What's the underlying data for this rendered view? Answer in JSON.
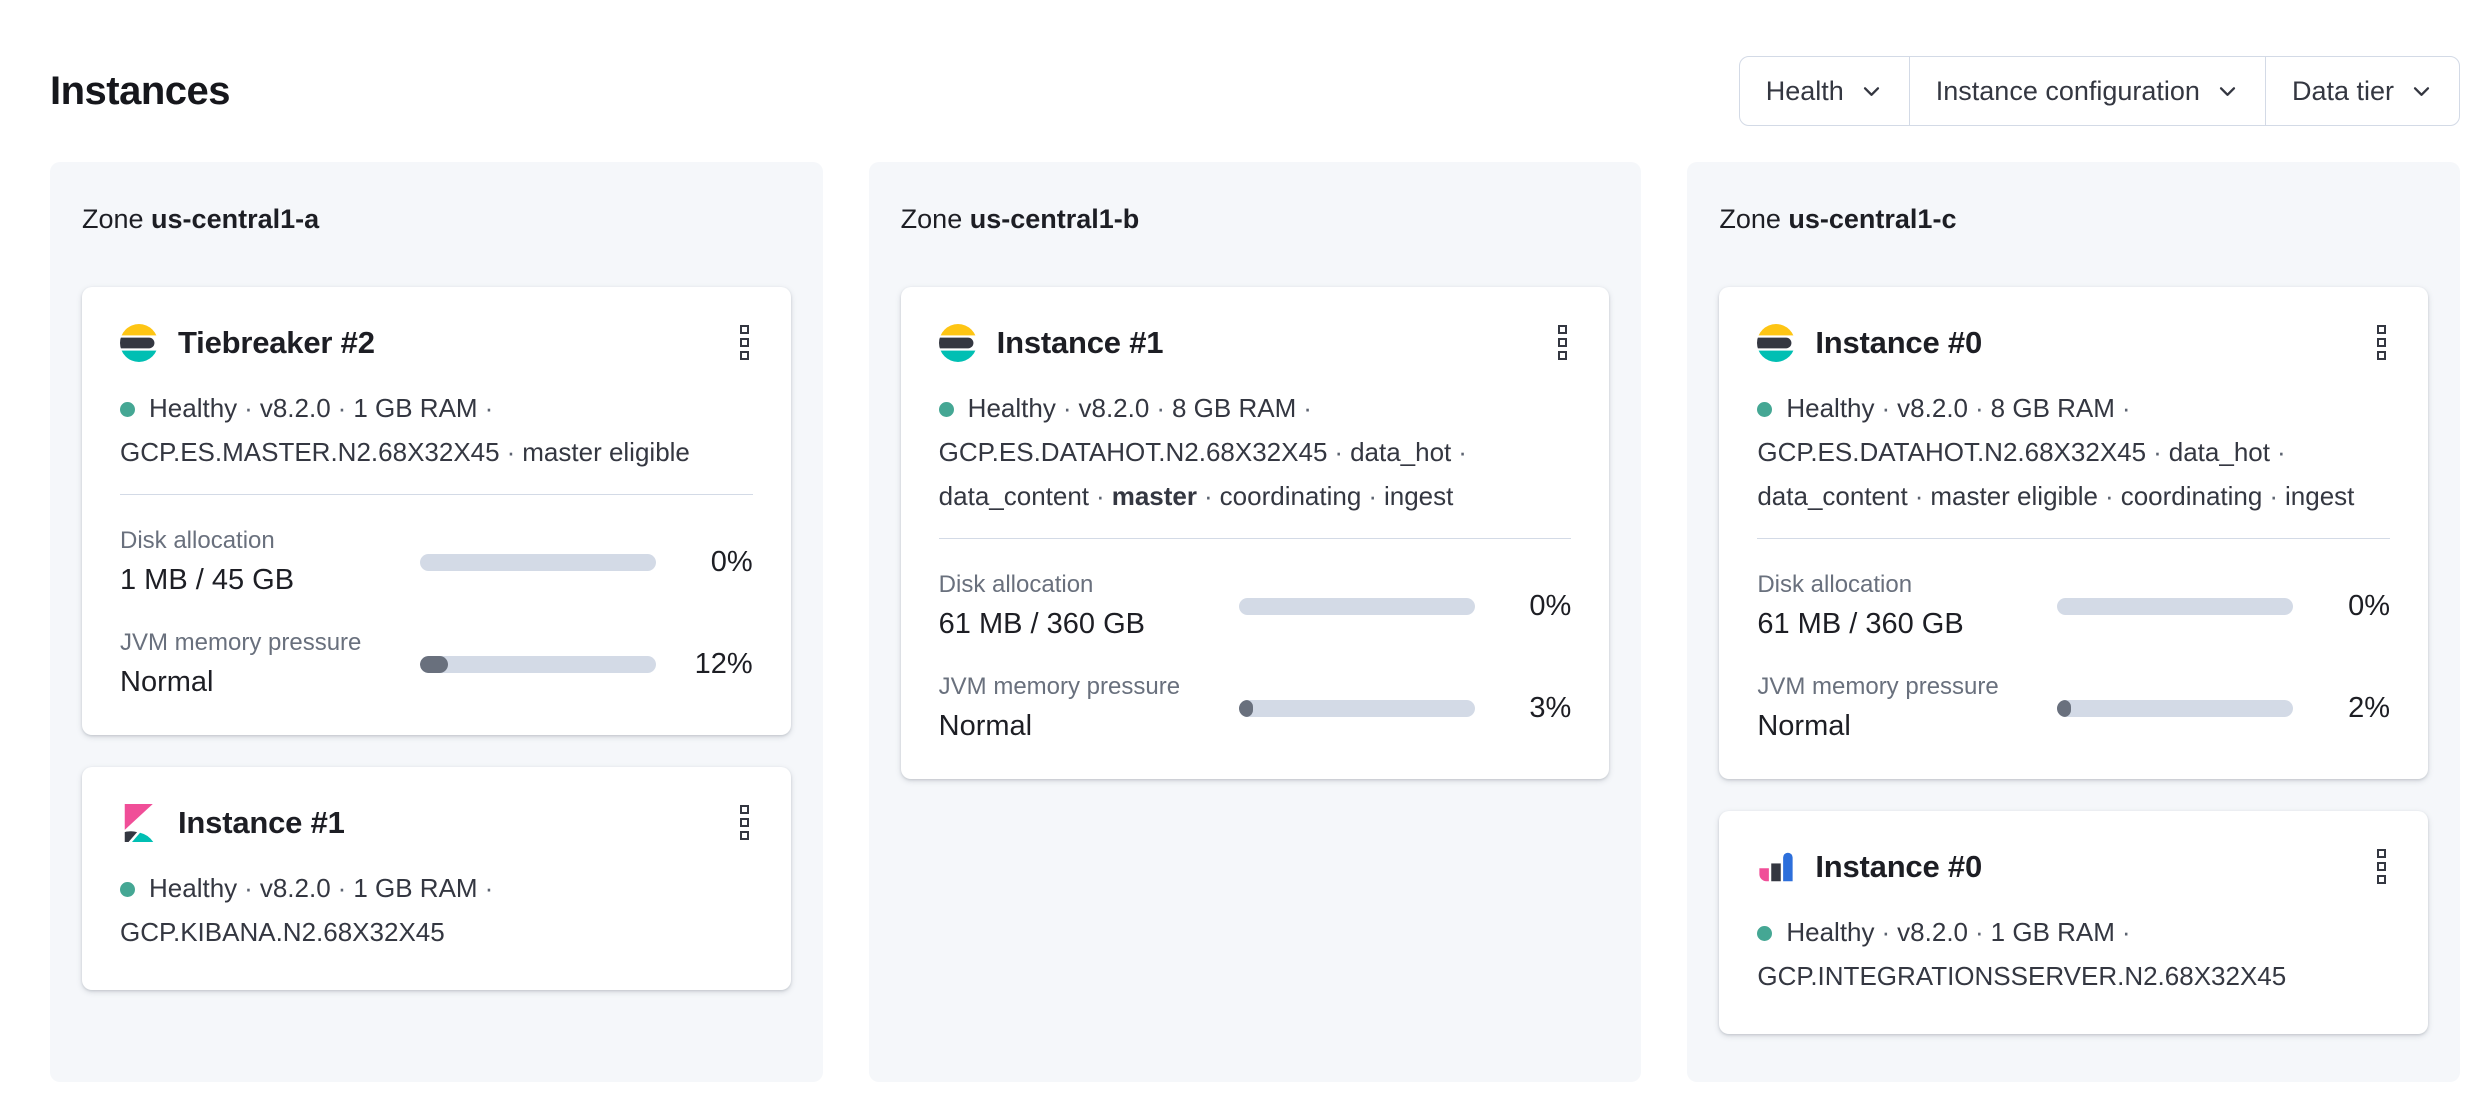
{
  "page": {
    "title": "Instances"
  },
  "filters": [
    {
      "label": "Health"
    },
    {
      "label": "Instance configuration"
    },
    {
      "label": "Data tier"
    }
  ],
  "colors": {
    "brand_yellow": "#FEC514",
    "brand_dark": "#343741",
    "brand_teal": "#00BFB3",
    "brand_pink": "#F04E98",
    "brand_blue": "#2D6FDB",
    "health_dot": "#45A794",
    "bar_track": "#D3DAE6",
    "bar_fill": "#69707D",
    "panel_bg": "#F5F7FA"
  },
  "zones": [
    {
      "label_prefix": "Zone",
      "name": "us-central1-a",
      "cards": [
        {
          "logo": "elasticsearch",
          "title": "Tiebreaker #2",
          "status_lines": [
            {
              "items": [
                {
                  "text": "Healthy",
                  "health_dot": true
                },
                {
                  "text": "v8.2.0"
                },
                {
                  "text": "1 GB RAM"
                }
              ],
              "trailing_separator": true
            },
            {
              "items": [
                {
                  "text": "GCP.ES.MASTER.N2.68X32X45"
                },
                {
                  "text": "master eligible"
                }
              ],
              "trailing_separator": false
            }
          ],
          "metrics": [
            {
              "label": "Disk allocation",
              "value": "1 MB / 45 GB",
              "percent": 0,
              "percent_label": "0%"
            },
            {
              "label": "JVM memory pressure",
              "value": "Normal",
              "percent": 12,
              "percent_label": "12%"
            }
          ]
        },
        {
          "logo": "kibana",
          "title": "Instance #1",
          "status_lines": [
            {
              "items": [
                {
                  "text": "Healthy",
                  "health_dot": true
                },
                {
                  "text": "v8.2.0"
                },
                {
                  "text": "1 GB RAM"
                }
              ],
              "trailing_separator": true
            },
            {
              "items": [
                {
                  "text": "GCP.KIBANA.N2.68X32X45"
                }
              ],
              "trailing_separator": false
            }
          ],
          "metrics": []
        }
      ]
    },
    {
      "label_prefix": "Zone",
      "name": "us-central1-b",
      "cards": [
        {
          "logo": "elasticsearch",
          "title": "Instance #1",
          "status_lines": [
            {
              "items": [
                {
                  "text": "Healthy",
                  "health_dot": true
                },
                {
                  "text": "v8.2.0"
                },
                {
                  "text": "8 GB RAM"
                }
              ],
              "trailing_separator": true
            },
            {
              "items": [
                {
                  "text": "GCP.ES.DATAHOT.N2.68X32X45"
                },
                {
                  "text": "data_hot"
                }
              ],
              "trailing_separator": true
            },
            {
              "items": [
                {
                  "text": "data_content"
                },
                {
                  "text": "master",
                  "bold": true
                },
                {
                  "text": "coordinating"
                },
                {
                  "text": "ingest"
                }
              ],
              "trailing_separator": false
            }
          ],
          "metrics": [
            {
              "label": "Disk allocation",
              "value": "61 MB / 360 GB",
              "percent": 0,
              "percent_label": "0%"
            },
            {
              "label": "JVM memory pressure",
              "value": "Normal",
              "percent": 3,
              "percent_label": "3%"
            }
          ]
        }
      ]
    },
    {
      "label_prefix": "Zone",
      "name": "us-central1-c",
      "cards": [
        {
          "logo": "elasticsearch",
          "title": "Instance #0",
          "status_lines": [
            {
              "items": [
                {
                  "text": "Healthy",
                  "health_dot": true
                },
                {
                  "text": "v8.2.0"
                },
                {
                  "text": "8 GB RAM"
                }
              ],
              "trailing_separator": true
            },
            {
              "items": [
                {
                  "text": "GCP.ES.DATAHOT.N2.68X32X45"
                },
                {
                  "text": "data_hot"
                }
              ],
              "trailing_separator": true
            },
            {
              "items": [
                {
                  "text": "data_content"
                },
                {
                  "text": "master eligible"
                },
                {
                  "text": "coordinating"
                },
                {
                  "text": "ingest"
                }
              ],
              "trailing_separator": false
            }
          ],
          "metrics": [
            {
              "label": "Disk allocation",
              "value": "61 MB / 360 GB",
              "percent": 0,
              "percent_label": "0%"
            },
            {
              "label": "JVM memory pressure",
              "value": "Normal",
              "percent": 2,
              "percent_label": "2%"
            }
          ]
        },
        {
          "logo": "integrations-server",
          "title": "Instance #0",
          "status_lines": [
            {
              "items": [
                {
                  "text": "Healthy",
                  "health_dot": true
                },
                {
                  "text": "v8.2.0"
                },
                {
                  "text": "1 GB RAM"
                }
              ],
              "trailing_separator": true
            },
            {
              "items": [
                {
                  "text": "GCP.INTEGRATIONSSERVER.N2.68X32X45"
                }
              ],
              "trailing_separator": false
            }
          ],
          "metrics": []
        }
      ]
    }
  ]
}
